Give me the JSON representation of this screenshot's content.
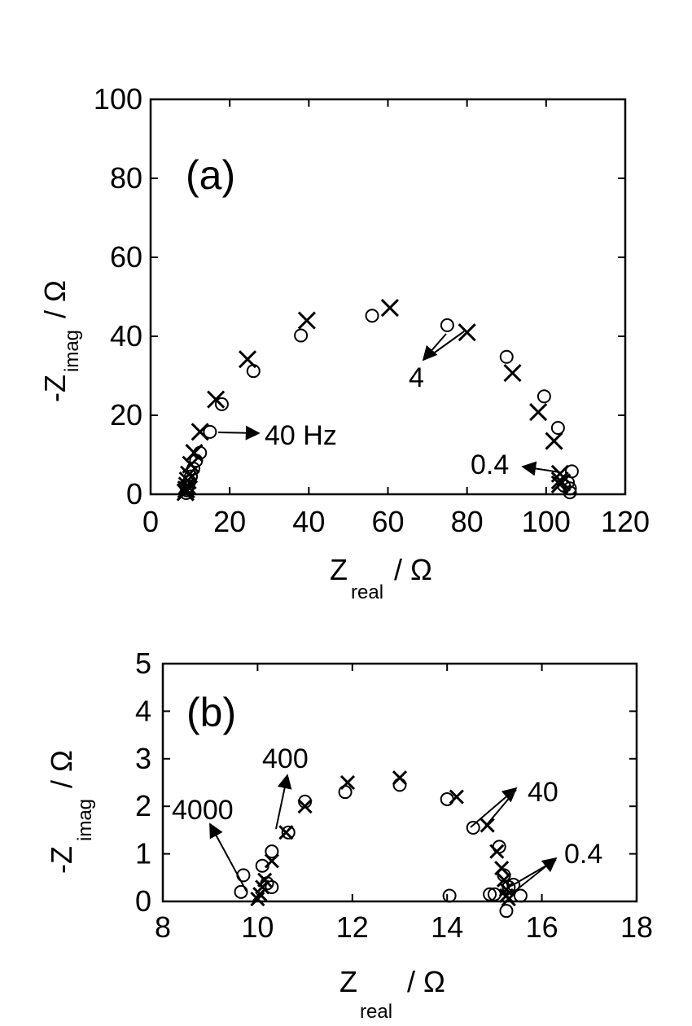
{
  "chart_data": [
    {
      "type": "scatter",
      "panel_label": "(a)",
      "xlabel": {
        "main": "Z",
        "sub": "real",
        "unit": " / Ω"
      },
      "ylabel": {
        "main": "-Z",
        "sub": "imag",
        "unit": " / Ω"
      },
      "xlim": [
        0,
        120
      ],
      "ylim": [
        0,
        100
      ],
      "xticks": [
        0,
        20,
        40,
        60,
        80,
        100,
        120
      ],
      "yticks": [
        0,
        20,
        40,
        60,
        80,
        100
      ],
      "grid": false,
      "series": [
        {
          "marker": "circle",
          "points": [
            [
              9.0,
              0.3
            ],
            [
              9.2,
              1.0
            ],
            [
              9.5,
              2.0
            ],
            [
              9.8,
              3.2
            ],
            [
              10.2,
              4.5
            ],
            [
              10.8,
              6.5
            ],
            [
              11.5,
              8.5
            ],
            [
              12.5,
              10.5
            ],
            [
              15,
              15.8
            ],
            [
              18,
              22.8
            ],
            [
              26,
              31.2
            ],
            [
              38,
              40.2
            ],
            [
              56,
              45.2
            ],
            [
              75,
              42.8
            ],
            [
              90,
              34.8
            ],
            [
              99.5,
              24.8
            ],
            [
              103,
              16.8
            ],
            [
              106.5,
              5.8
            ],
            [
              105.5,
              3.0
            ],
            [
              106,
              1.5
            ],
            [
              106,
              0.5
            ],
            [
              104.5,
              2.2
            ]
          ]
        },
        {
          "marker": "cross",
          "points": [
            [
              8.8,
              0.5
            ],
            [
              9.0,
              1.2
            ],
            [
              9.2,
              2.2
            ],
            [
              9.4,
              3.5
            ],
            [
              9.7,
              5.0
            ],
            [
              10.2,
              7.5
            ],
            [
              11.0,
              10.5
            ],
            [
              12.5,
              15.8
            ],
            [
              16.5,
              24.0
            ],
            [
              24.5,
              34.2
            ],
            [
              39.5,
              44.0
            ],
            [
              60.5,
              47.2
            ],
            [
              80,
              41.0
            ],
            [
              91.5,
              30.7
            ],
            [
              98,
              20.8
            ],
            [
              102,
              13.5
            ],
            [
              103.5,
              5.2
            ],
            [
              103.5,
              3.5
            ],
            [
              103.5,
              2.5
            ],
            [
              104,
              3.0
            ]
          ]
        }
      ],
      "annotations": [
        {
          "text": "40 Hz",
          "from": [
            15,
            15.8
          ]
        },
        {
          "text": "4",
          "from": [
            75,
            42.8
          ],
          "from2": [
            80,
            41.0
          ]
        },
        {
          "text": "0.4",
          "from": [
            104,
            3.2
          ]
        }
      ]
    },
    {
      "type": "scatter",
      "panel_label": "(b)",
      "xlabel": {
        "main": "Z",
        "sub": "real",
        "unit": " / Ω"
      },
      "ylabel": {
        "main": "-Z",
        "sub": "imag",
        "unit": " / Ω"
      },
      "xlim": [
        8,
        18
      ],
      "ylim": [
        0,
        5
      ],
      "xticks": [
        8,
        10,
        12,
        14,
        16,
        18
      ],
      "yticks": [
        0,
        1,
        2,
        3,
        4,
        5
      ],
      "grid": false,
      "series": [
        {
          "marker": "circle",
          "points": [
            [
              9.65,
              0.2
            ],
            [
              9.7,
              0.55
            ],
            [
              10.1,
              0.75
            ],
            [
              10.2,
              0.38
            ],
            [
              10.3,
              0.3
            ],
            [
              10.3,
              1.05
            ],
            [
              10.65,
              1.45
            ],
            [
              11.0,
              2.1
            ],
            [
              11.85,
              2.3
            ],
            [
              13.0,
              2.45
            ],
            [
              14.0,
              2.15
            ],
            [
              14.05,
              0.12
            ],
            [
              14.55,
              1.55
            ],
            [
              14.9,
              0.15
            ],
            [
              15.0,
              0.15
            ],
            [
              15.1,
              1.15
            ],
            [
              15.2,
              0.55
            ],
            [
              15.25,
              -0.2
            ],
            [
              15.3,
              0.3
            ],
            [
              15.4,
              0.35
            ],
            [
              15.55,
              0.12
            ]
          ]
        },
        {
          "marker": "cross",
          "points": [
            [
              10.0,
              0.05
            ],
            [
              10.05,
              0.15
            ],
            [
              10.1,
              0.3
            ],
            [
              10.15,
              0.45
            ],
            [
              10.3,
              0.85
            ],
            [
              10.6,
              1.45
            ],
            [
              11.0,
              2.0
            ],
            [
              11.9,
              2.5
            ],
            [
              13.0,
              2.6
            ],
            [
              14.2,
              2.2
            ],
            [
              14.85,
              1.6
            ],
            [
              15.05,
              1.05
            ],
            [
              15.15,
              0.7
            ],
            [
              15.2,
              0.45
            ],
            [
              15.25,
              0.25
            ],
            [
              15.25,
              0.12
            ],
            [
              15.3,
              0.05
            ]
          ]
        }
      ],
      "annotations": [
        {
          "text": "4000",
          "from": [
            10.1,
            0.1
          ]
        },
        {
          "text": "400",
          "from": [
            10.6,
            1.45
          ]
        },
        {
          "text": "40",
          "from": [
            14.55,
            1.55
          ],
          "from2": [
            14.85,
            1.6
          ]
        },
        {
          "text": "0.4",
          "from": [
            15.25,
            0.15
          ],
          "from2": [
            15.3,
            0.3
          ]
        }
      ]
    }
  ]
}
